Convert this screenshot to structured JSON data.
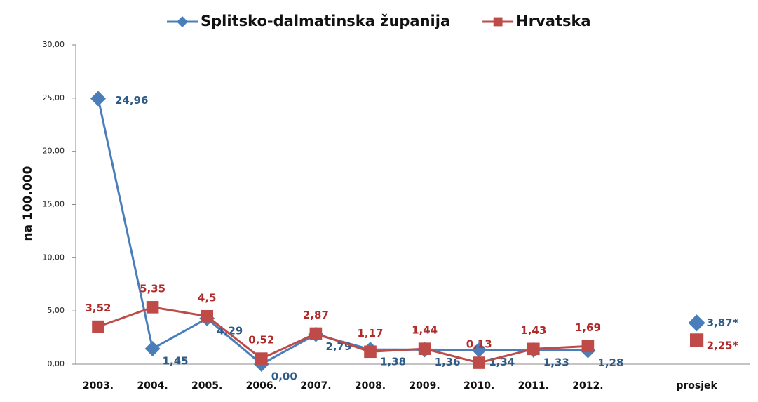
{
  "chart_data": {
    "type": "line",
    "y_label": "na 100.000",
    "categories": [
      "2003.",
      "2004.",
      "2005.",
      "2006.",
      "2007.",
      "2008.",
      "2009.",
      "2010.",
      "2011.",
      "2012.",
      null,
      "prosjek"
    ],
    "series": [
      {
        "name": "Splitsko-dalmatinska županija",
        "color": "#4a7ebb",
        "label_color": "#2e5a87",
        "marker": "diamond",
        "values": [
          24.96,
          1.45,
          4.29,
          0.0,
          2.79,
          1.38,
          1.36,
          1.34,
          1.33,
          1.28,
          null,
          3.87
        ],
        "value_labels": [
          "24,96",
          "1,45",
          "4,29",
          "0,00",
          "2,79",
          "1,38",
          "1,36",
          "1,34",
          "1,33",
          "1,28",
          null,
          "3,87*"
        ]
      },
      {
        "name": "Hrvatska",
        "color": "#be4b48",
        "label_color": "#b02a2a",
        "marker": "square",
        "values": [
          3.52,
          5.35,
          4.5,
          0.52,
          2.87,
          1.17,
          1.44,
          0.13,
          1.43,
          1.69,
          null,
          2.25
        ],
        "value_labels": [
          "3,52",
          "5,35",
          "4,5",
          "0,52",
          "2,87",
          "1,17",
          "1,44",
          "0,13",
          "1,43",
          "1,69",
          null,
          "2,25*"
        ]
      }
    ],
    "ylim": [
      0,
      30
    ],
    "yticks": [
      {
        "value": 0,
        "label": "0,00"
      },
      {
        "value": 5,
        "label": "5,00"
      },
      {
        "value": 10,
        "label": "10,00"
      },
      {
        "value": 15,
        "label": "15,00"
      },
      {
        "value": 20,
        "label": "20,00"
      },
      {
        "value": 25,
        "label": "25,00"
      },
      {
        "value": 30,
        "label": "30,00"
      }
    ],
    "legend": "top"
  }
}
